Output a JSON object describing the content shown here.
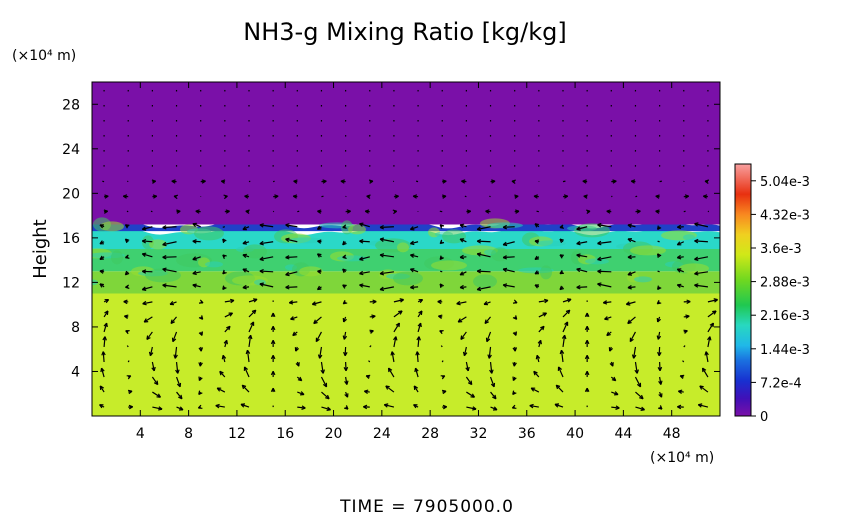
{
  "chart_data": {
    "type": "heatmap",
    "title": "NH3-g Mixing Ratio [kg/kg]",
    "ylabel": "Height",
    "x_unit": "(×10⁴ m)",
    "y_unit": "(×10⁴ m)",
    "xlim": [
      0,
      52
    ],
    "ylim": [
      0,
      30
    ],
    "x_ticks": [
      "4",
      "8",
      "12",
      "16",
      "20",
      "24",
      "28",
      "32",
      "36",
      "40",
      "44",
      "48"
    ],
    "x_tick_values": [
      4,
      8,
      12,
      16,
      20,
      24,
      28,
      32,
      36,
      40,
      44,
      48
    ],
    "y_ticks": [
      "4",
      "8",
      "12",
      "16",
      "20",
      "24",
      "28"
    ],
    "y_tick_values": [
      4,
      8,
      12,
      16,
      20,
      24,
      28
    ],
    "colorbar": {
      "min": 0,
      "max": 0.0054,
      "tick_labels": [
        "0",
        "7.2e-4",
        "1.44e-3",
        "2.16e-3",
        "2.88e-3",
        "3.6e-3",
        "4.32e-3",
        "5.04e-3"
      ],
      "tick_values": [
        0,
        0.00072,
        0.00144,
        0.00216,
        0.00288,
        0.0036,
        0.00432,
        0.00504
      ],
      "colors": [
        "#7a10a8",
        "#3a14c0",
        "#1a5ad8",
        "#20b0e0",
        "#2ad8c0",
        "#20c840",
        "#7ad820",
        "#d8e818",
        "#f8c020",
        "#f87020",
        "#e82010",
        "#f88080"
      ]
    },
    "field_regions": [
      {
        "y_from": 0,
        "y_to": 11,
        "value": 0.0034,
        "color": "#c7ec2a"
      },
      {
        "y_from": 11,
        "y_to": 13,
        "value": 0.003,
        "color": "#7fd63a"
      },
      {
        "y_from": 13,
        "y_to": 15,
        "value": 0.0026,
        "color": "#3fd070"
      },
      {
        "y_from": 15,
        "y_to": 16.6,
        "value": 0.002,
        "color": "#2ad8c8"
      },
      {
        "y_from": 16.6,
        "y_to": 17.2,
        "value": 0.0008,
        "color": "#2040c8"
      },
      {
        "y_from": 17.2,
        "y_to": 30,
        "value": 0,
        "color": "#7a10a8"
      }
    ],
    "wind_vectors": "quiver field of horizontal/vertical velocity overlaid on mixing ratio"
  },
  "time_label": "TIME = 7905000.0"
}
